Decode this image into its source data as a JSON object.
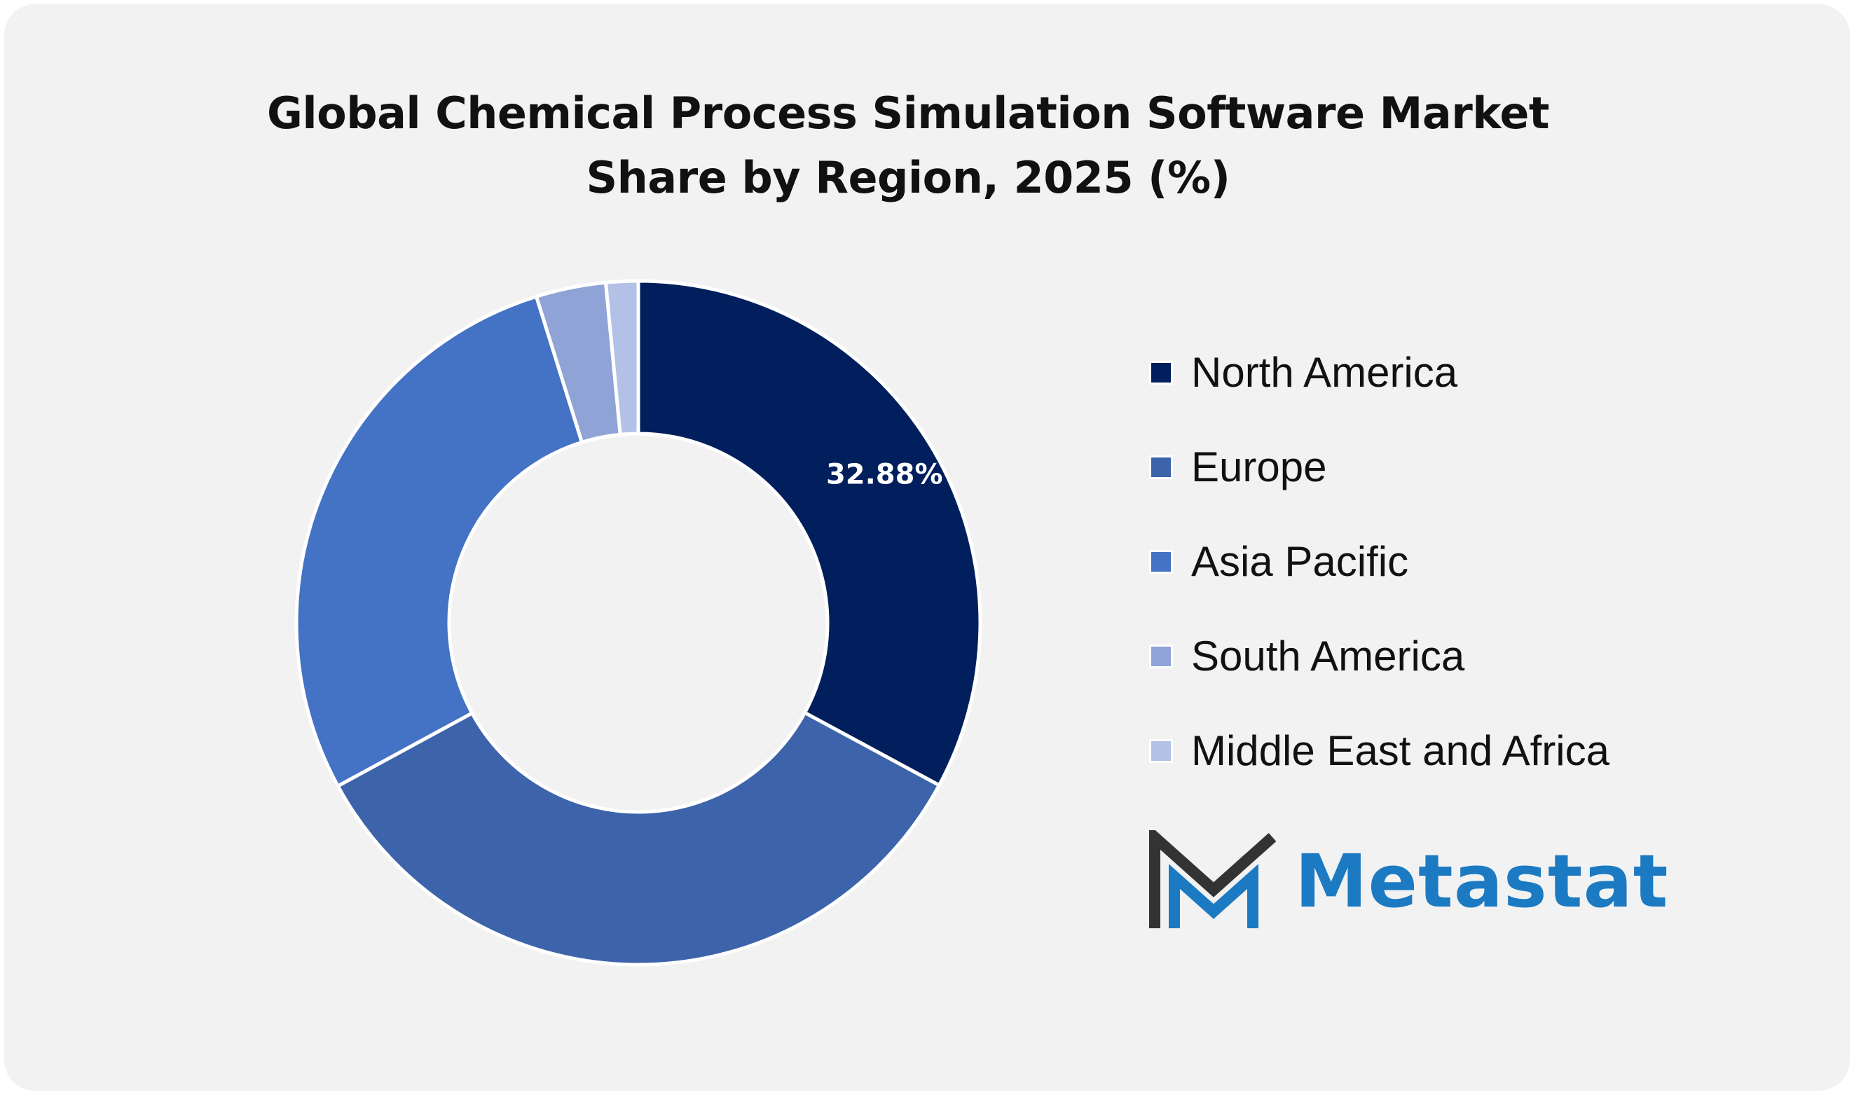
{
  "chart_data": {
    "type": "pie",
    "title": "Global Chemical Process Simulation Software Market Share by Region, 2025 (%)",
    "title_lines": [
      "Global Chemical Process Simulation Software Market",
      "Share by Region, 2025 (%)"
    ],
    "donut": true,
    "legend_position": "right",
    "categories": [
      "North America",
      "Europe",
      "Asia Pacific",
      "South America",
      "Middle East and Africa"
    ],
    "values": [
      32.88,
      34.2,
      28.1,
      3.3,
      1.52
    ],
    "data_labels": [
      "32.88%",
      "",
      "",
      "",
      ""
    ],
    "colors": [
      "#001f5c",
      "#3d64aa",
      "#4472c4",
      "#8fa3d6",
      "#b4c1e6"
    ]
  },
  "brand": {
    "name": "Metastat",
    "icon": "metastat-m-logo-icon",
    "dark_color": "#333333",
    "accent_color": "#1b7ac2"
  },
  "colors": {
    "card_background": "#f2f2f3",
    "slice_border": "#ffffff"
  }
}
